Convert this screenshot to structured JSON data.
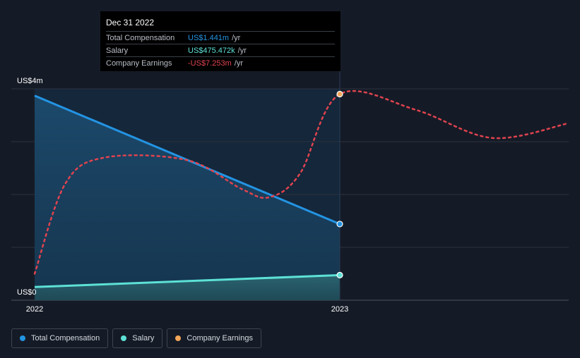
{
  "colors": {
    "total_compensation": "#2394e3",
    "salary": "#5de1d6",
    "company_earnings": "#e0434f",
    "earnings_marker": "#f2a65a"
  },
  "tooltip": {
    "date": "Dec 31 2022",
    "rows": [
      {
        "label": "Total Compensation",
        "value": "US$1.441m",
        "unit": "/yr",
        "color": "#2394e3"
      },
      {
        "label": "Salary",
        "value": "US$475.472k",
        "unit": "/yr",
        "color": "#5de1d6"
      },
      {
        "label": "Company Earnings",
        "value": "-US$7.253m",
        "unit": "/yr",
        "color": "#e0434f"
      }
    ]
  },
  "legend": [
    {
      "label": "Total Compensation",
      "color": "#2394e3"
    },
    {
      "label": "Salary",
      "color": "#5de1d6"
    },
    {
      "label": "Company Earnings",
      "color": "#f2a65a"
    }
  ],
  "chart_data": {
    "type": "line",
    "title": "",
    "xlabel": "",
    "ylabel": "",
    "x_ticks": [
      "2022",
      "2023"
    ],
    "y_tick_labels": {
      "top": "US$4m",
      "bottom": "US$0"
    },
    "ylim": [
      0,
      4
    ],
    "xlim": [
      2022.0,
      2023.75
    ],
    "highlight_x": 2023.0,
    "series": [
      {
        "name": "Total Compensation",
        "unit": "US$m",
        "color": "#2394e3",
        "x": [
          2022.0,
          2023.0
        ],
        "y": [
          3.87,
          1.441
        ],
        "area": true
      },
      {
        "name": "Salary",
        "unit": "US$m",
        "color": "#5de1d6",
        "x": [
          2022.0,
          2023.0
        ],
        "y": [
          0.25,
          0.475
        ],
        "area": true
      },
      {
        "name": "Company Earnings",
        "unit": "relative",
        "color": "#e0434f",
        "dashed": true,
        "x": [
          2022.0,
          2022.1,
          2022.23,
          2022.5,
          2022.68,
          2022.77,
          2022.87,
          2023.0,
          2023.25,
          2023.5,
          2023.75
        ],
        "y": [
          0.5,
          2.2,
          2.7,
          2.65,
          2.1,
          1.95,
          2.4,
          3.9,
          3.6,
          3.07,
          3.35
        ]
      }
    ]
  }
}
